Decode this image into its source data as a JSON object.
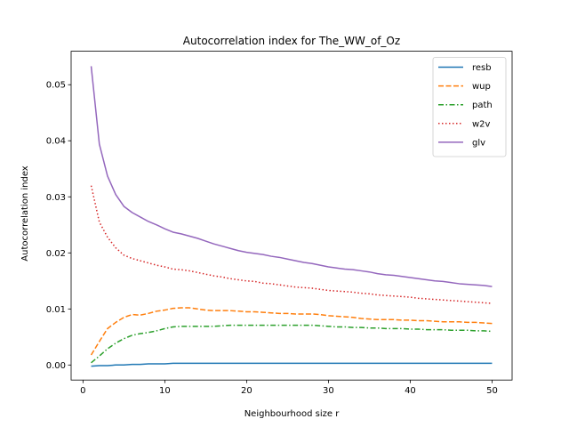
{
  "chart_data": {
    "type": "line",
    "title": "Autocorrelation index for The_WW_of_Oz",
    "xlabel": "Neighbourhood size r",
    "ylabel": "Autocorrelation index",
    "xlim": [
      -1.45,
      52.45
    ],
    "ylim": [
      -0.00268,
      0.05597
    ],
    "xticks": [
      0,
      10,
      20,
      30,
      40,
      50
    ],
    "yticks": [
      0.0,
      0.01,
      0.02,
      0.03,
      0.04,
      0.05
    ],
    "ytick_labels": [
      "0.00",
      "0.01",
      "0.02",
      "0.03",
      "0.04",
      "0.05"
    ],
    "grid": false,
    "legend_position": "top-right",
    "x": [
      1,
      2,
      3,
      4,
      5,
      6,
      7,
      8,
      9,
      10,
      11,
      12,
      13,
      14,
      15,
      16,
      17,
      18,
      19,
      20,
      21,
      22,
      23,
      24,
      25,
      26,
      27,
      28,
      29,
      30,
      31,
      32,
      33,
      34,
      35,
      36,
      37,
      38,
      39,
      40,
      41,
      42,
      43,
      44,
      45,
      46,
      47,
      48,
      49,
      50
    ],
    "series": [
      {
        "name": "resb",
        "color": "#1f77b4",
        "dash": "solid",
        "values": [
          -0.0002,
          -0.0001,
          -0.0001,
          0.0,
          0.0,
          0.0001,
          0.0001,
          0.0002,
          0.0002,
          0.0002,
          0.0003,
          0.0003,
          0.0003,
          0.0003,
          0.0003,
          0.0003,
          0.0003,
          0.0003,
          0.0003,
          0.0003,
          0.0003,
          0.0003,
          0.0003,
          0.0003,
          0.0003,
          0.0003,
          0.0003,
          0.0003,
          0.0003,
          0.0003,
          0.0003,
          0.0003,
          0.0003,
          0.0003,
          0.0003,
          0.0003,
          0.0003,
          0.0003,
          0.0003,
          0.0003,
          0.0003,
          0.0003,
          0.0003,
          0.0003,
          0.0003,
          0.0003,
          0.0003,
          0.0003,
          0.0003,
          0.0003
        ]
      },
      {
        "name": "wup",
        "color": "#ff7f0e",
        "dash": "dashed",
        "values": [
          0.0018,
          0.0042,
          0.0065,
          0.0076,
          0.0085,
          0.009,
          0.0089,
          0.0092,
          0.0096,
          0.0098,
          0.0101,
          0.0102,
          0.0102,
          0.01,
          0.0098,
          0.0097,
          0.0097,
          0.0097,
          0.0096,
          0.0095,
          0.0095,
          0.0094,
          0.0093,
          0.0092,
          0.0092,
          0.0091,
          0.0091,
          0.0091,
          0.009,
          0.0088,
          0.0087,
          0.0086,
          0.0085,
          0.0083,
          0.0082,
          0.0081,
          0.0081,
          0.0081,
          0.008,
          0.008,
          0.0079,
          0.0079,
          0.0078,
          0.0077,
          0.0077,
          0.0077,
          0.0076,
          0.0076,
          0.0075,
          0.0074
        ]
      },
      {
        "name": "path",
        "color": "#2ca02c",
        "dash": "dashdot",
        "values": [
          0.0004,
          0.0016,
          0.0029,
          0.0039,
          0.0047,
          0.0053,
          0.0056,
          0.0058,
          0.0061,
          0.0065,
          0.0068,
          0.0069,
          0.0069,
          0.0069,
          0.0069,
          0.0069,
          0.007,
          0.0071,
          0.0071,
          0.0071,
          0.0071,
          0.0071,
          0.0071,
          0.0071,
          0.0071,
          0.0071,
          0.0071,
          0.0071,
          0.007,
          0.0069,
          0.0068,
          0.0068,
          0.0067,
          0.0067,
          0.0066,
          0.0066,
          0.0065,
          0.0065,
          0.0065,
          0.0064,
          0.0064,
          0.0063,
          0.0063,
          0.0063,
          0.0062,
          0.0062,
          0.0062,
          0.0061,
          0.0061,
          0.006
        ]
      },
      {
        "name": "w2v",
        "color": "#d62728",
        "dash": "dotted",
        "values": [
          0.032,
          0.0255,
          0.0228,
          0.0209,
          0.0196,
          0.019,
          0.0186,
          0.0182,
          0.0178,
          0.0175,
          0.0171,
          0.017,
          0.0168,
          0.0165,
          0.0162,
          0.0159,
          0.0157,
          0.0154,
          0.0152,
          0.015,
          0.0149,
          0.0146,
          0.0145,
          0.0143,
          0.0141,
          0.0139,
          0.0138,
          0.0137,
          0.0135,
          0.0133,
          0.0132,
          0.0131,
          0.013,
          0.0128,
          0.0127,
          0.0125,
          0.0124,
          0.0123,
          0.0122,
          0.0121,
          0.0119,
          0.0118,
          0.0117,
          0.0116,
          0.0115,
          0.0114,
          0.0113,
          0.0112,
          0.0111,
          0.011
        ]
      },
      {
        "name": "glv",
        "color": "#9467bd",
        "dash": "solid",
        "values": [
          0.0533,
          0.0394,
          0.0337,
          0.0304,
          0.0283,
          0.0272,
          0.0264,
          0.0256,
          0.025,
          0.0243,
          0.0237,
          0.0234,
          0.023,
          0.0226,
          0.0221,
          0.0216,
          0.0212,
          0.0208,
          0.0204,
          0.0201,
          0.0199,
          0.0197,
          0.0194,
          0.0192,
          0.0189,
          0.0186,
          0.0183,
          0.0181,
          0.0178,
          0.0175,
          0.0173,
          0.0171,
          0.017,
          0.0168,
          0.0166,
          0.0163,
          0.0161,
          0.016,
          0.0158,
          0.0156,
          0.0154,
          0.0152,
          0.015,
          0.0149,
          0.0147,
          0.0145,
          0.0144,
          0.0143,
          0.0142,
          0.014
        ]
      }
    ]
  }
}
